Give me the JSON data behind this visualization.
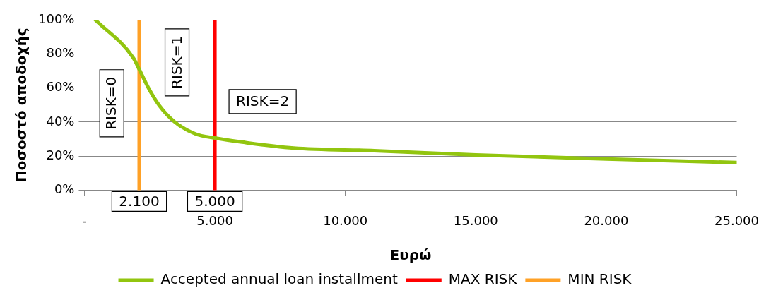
{
  "chart_data": {
    "type": "line",
    "xlabel": "Ευρώ",
    "ylabel": "Ποσοστό αποδοχής",
    "xlim": [
      0,
      25000
    ],
    "xticks": [
      {
        "value": 0,
        "label": "-"
      },
      {
        "value": 5000,
        "label": "5.000"
      },
      {
        "value": 10000,
        "label": "10.000"
      },
      {
        "value": 15000,
        "label": "15.000"
      },
      {
        "value": 20000,
        "label": "20.000"
      },
      {
        "value": 25000,
        "label": "25.000"
      }
    ],
    "ylim": [
      0,
      100
    ],
    "yticks": [
      {
        "value": 0,
        "label": "0%"
      },
      {
        "value": 20,
        "label": "20%"
      },
      {
        "value": 40,
        "label": "40%"
      },
      {
        "value": 60,
        "label": "60%"
      },
      {
        "value": 80,
        "label": "80%"
      },
      {
        "value": 100,
        "label": "100%"
      }
    ],
    "grid": "y",
    "legend": "bottom",
    "marker": "none",
    "line_style": "solid",
    "series": [
      {
        "name": "Accepted annual loan installment",
        "color": "#92c50f",
        "x": [
          416,
          1881,
          2110,
          2475,
          2870,
          3465,
          4260,
          5000,
          6040,
          8020,
          11110,
          15000,
          20000,
          25000
        ],
        "values": [
          100,
          77.5,
          70.6,
          59.4,
          49.7,
          40,
          33,
          30.6,
          28.2,
          24.7,
          23.2,
          20.7,
          18.3,
          16.2
        ]
      },
      {
        "name": "MAX RISK",
        "color": "#ff0000",
        "x": [
          5000,
          5000
        ],
        "values": [
          0,
          100
        ]
      },
      {
        "name": "MIN RISK",
        "color": "#ffa126",
        "x": [
          2100,
          2100
        ],
        "values": [
          0,
          100
        ]
      }
    ],
    "annotations": [
      "RISK=0",
      "RISK=1",
      "RISK=2",
      {
        "text": "2.100",
        "x": 2100,
        "y": 0
      },
      {
        "text": "5.000",
        "x": 5000,
        "y": 0
      }
    ]
  }
}
